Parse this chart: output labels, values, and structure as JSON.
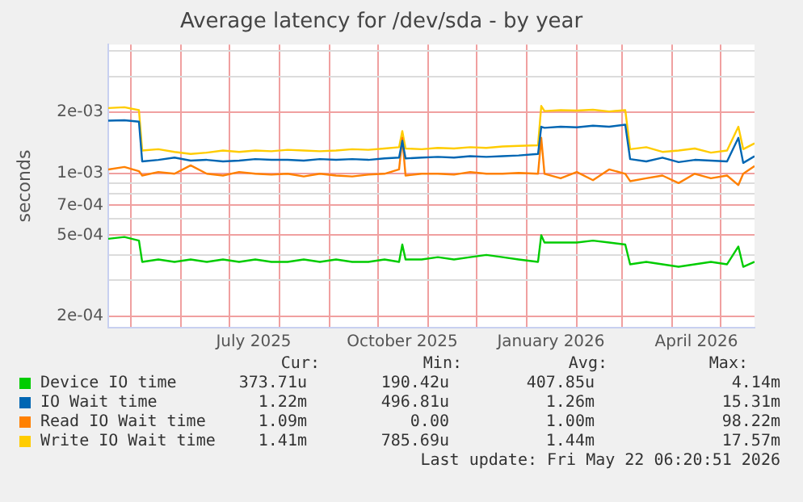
{
  "chart_data": {
    "type": "line",
    "title": "Average latency for /dev/sda - by year",
    "ylabel": "seconds",
    "log": "y",
    "grid": true,
    "legend": "bottom",
    "marker": "none",
    "line_style": "solid",
    "x": [
      "2025-04-17",
      "2025-04-27",
      "2025-05-06",
      "2025-05-08",
      "2025-05-18",
      "2025-05-28",
      "2025-06-07",
      "2025-06-17",
      "2025-06-27",
      "2025-07-07",
      "2025-07-17",
      "2025-07-27",
      "2025-08-06",
      "2025-08-16",
      "2025-08-26",
      "2025-09-05",
      "2025-09-15",
      "2025-09-25",
      "2025-10-05",
      "2025-10-14",
      "2025-10-16",
      "2025-10-18",
      "2025-10-28",
      "2025-11-07",
      "2025-11-17",
      "2025-11-27",
      "2025-12-07",
      "2025-12-17",
      "2025-12-27",
      "2026-01-08",
      "2026-01-10",
      "2026-01-12",
      "2026-01-22",
      "2026-02-01",
      "2026-02-11",
      "2026-02-21",
      "2026-03-03",
      "2026-03-06",
      "2026-03-16",
      "2026-03-26",
      "2026-04-05",
      "2026-04-15",
      "2026-04-25",
      "2026-05-05",
      "2026-05-12",
      "2026-05-15",
      "2026-05-22"
    ],
    "xlim": [
      "2025-04-17",
      "2026-05-22"
    ],
    "xticks": [
      {
        "value": "2025-05-01",
        "label": null
      },
      {
        "value": "2025-06-01",
        "label": null
      },
      {
        "value": "2025-07-01",
        "label": null
      },
      {
        "value": "2025-07-16",
        "label": "July 2025"
      },
      {
        "value": "2025-08-01",
        "label": null
      },
      {
        "value": "2025-09-01",
        "label": null
      },
      {
        "value": "2025-10-01",
        "label": null
      },
      {
        "value": "2025-10-16",
        "label": "October 2025"
      },
      {
        "value": "2025-11-01",
        "label": null
      },
      {
        "value": "2025-12-01",
        "label": null
      },
      {
        "value": "2026-01-01",
        "label": null
      },
      {
        "value": "2026-01-16",
        "label": "January 2026"
      },
      {
        "value": "2026-02-01",
        "label": null
      },
      {
        "value": "2026-03-01",
        "label": null
      },
      {
        "value": "2026-04-01",
        "label": null
      },
      {
        "value": "2026-04-16",
        "label": "April 2026"
      },
      {
        "value": "2026-05-01",
        "label": null
      }
    ],
    "ylim": [
      0.000176,
      0.0043
    ],
    "yticks": [
      {
        "value": 0.0002,
        "label": "2e-04"
      },
      {
        "value": 0.0003,
        "label": null
      },
      {
        "value": 0.0004,
        "label": null
      },
      {
        "value": 0.0005,
        "label": "5e-04"
      },
      {
        "value": 0.0006,
        "label": null
      },
      {
        "value": 0.0007,
        "label": "7e-04"
      },
      {
        "value": 0.0008,
        "label": null
      },
      {
        "value": 0.0009,
        "label": null
      },
      {
        "value": 0.001,
        "label": "1e-03"
      },
      {
        "value": 0.002,
        "label": "2e-03"
      },
      {
        "value": 0.003,
        "label": null
      },
      {
        "value": 0.004,
        "label": null
      }
    ],
    "series": [
      {
        "name": "Device IO time",
        "color": "#00cc00",
        "values": [
          0.00048,
          0.00049,
          0.00047,
          0.00037,
          0.00038,
          0.00037,
          0.00038,
          0.00037,
          0.00038,
          0.00037,
          0.00038,
          0.00037,
          0.00037,
          0.00038,
          0.00037,
          0.00038,
          0.00037,
          0.00037,
          0.00038,
          0.00037,
          0.00045,
          0.00038,
          0.00038,
          0.00039,
          0.00038,
          0.00039,
          0.0004,
          0.00039,
          0.00038,
          0.00037,
          0.0005,
          0.00046,
          0.00046,
          0.00046,
          0.00047,
          0.00046,
          0.00045,
          0.00036,
          0.00037,
          0.00036,
          0.00035,
          0.00036,
          0.00037,
          0.00036,
          0.00044,
          0.00035,
          0.00037
        ]
      },
      {
        "name": "IO Wait time",
        "color": "#0066b3",
        "values": [
          0.00182,
          0.00183,
          0.0018,
          0.00115,
          0.00117,
          0.0012,
          0.00116,
          0.00117,
          0.00115,
          0.00116,
          0.00118,
          0.00117,
          0.00117,
          0.00116,
          0.00118,
          0.00117,
          0.00118,
          0.00117,
          0.00119,
          0.0012,
          0.00145,
          0.00119,
          0.0012,
          0.00121,
          0.0012,
          0.00122,
          0.00121,
          0.00122,
          0.00123,
          0.00125,
          0.0017,
          0.00168,
          0.0017,
          0.00169,
          0.00172,
          0.0017,
          0.00174,
          0.00118,
          0.00115,
          0.0012,
          0.00114,
          0.00117,
          0.00116,
          0.00115,
          0.0015,
          0.00113,
          0.00122
        ]
      },
      {
        "name": "Read IO Wait time",
        "color": "#ff8000",
        "values": [
          0.00105,
          0.00108,
          0.00103,
          0.00098,
          0.00102,
          0.001,
          0.0011,
          0.001,
          0.00098,
          0.00102,
          0.001,
          0.00099,
          0.001,
          0.00097,
          0.001,
          0.00098,
          0.00097,
          0.00099,
          0.001,
          0.00105,
          0.0015,
          0.00098,
          0.001,
          0.001,
          0.00099,
          0.00102,
          0.001,
          0.001,
          0.00101,
          0.001,
          0.0015,
          0.001,
          0.00095,
          0.00102,
          0.00093,
          0.00105,
          0.001,
          0.00092,
          0.00095,
          0.00098,
          0.0009,
          0.001,
          0.00095,
          0.00098,
          0.00088,
          0.001,
          0.00109
        ]
      },
      {
        "name": "Write IO Wait time",
        "color": "#ffcc00",
        "values": [
          0.0021,
          0.00212,
          0.00205,
          0.0013,
          0.00132,
          0.00128,
          0.00125,
          0.00127,
          0.0013,
          0.00128,
          0.0013,
          0.00129,
          0.00131,
          0.0013,
          0.00129,
          0.0013,
          0.00132,
          0.00131,
          0.00133,
          0.00135,
          0.00162,
          0.00133,
          0.00132,
          0.00134,
          0.00133,
          0.00135,
          0.00134,
          0.00136,
          0.00137,
          0.00138,
          0.00215,
          0.00203,
          0.00205,
          0.00204,
          0.00206,
          0.00202,
          0.00205,
          0.00132,
          0.00135,
          0.00128,
          0.0013,
          0.00133,
          0.00127,
          0.0013,
          0.0017,
          0.00132,
          0.00141
        ]
      }
    ],
    "annotations": [
      "Cur:",
      "Min:",
      "Avg:",
      "Max:",
      "373.71u",
      "190.42u",
      "407.85u",
      "4.14m",
      "1.22m",
      "496.81u",
      "1.26m",
      "15.31m",
      "1.09m",
      "0.00",
      "1.00m",
      "98.22m",
      "1.41m",
      "785.69u",
      "1.44m",
      "17.57m",
      "Last update: Fri May 22 06:20:51 2026"
    ]
  }
}
